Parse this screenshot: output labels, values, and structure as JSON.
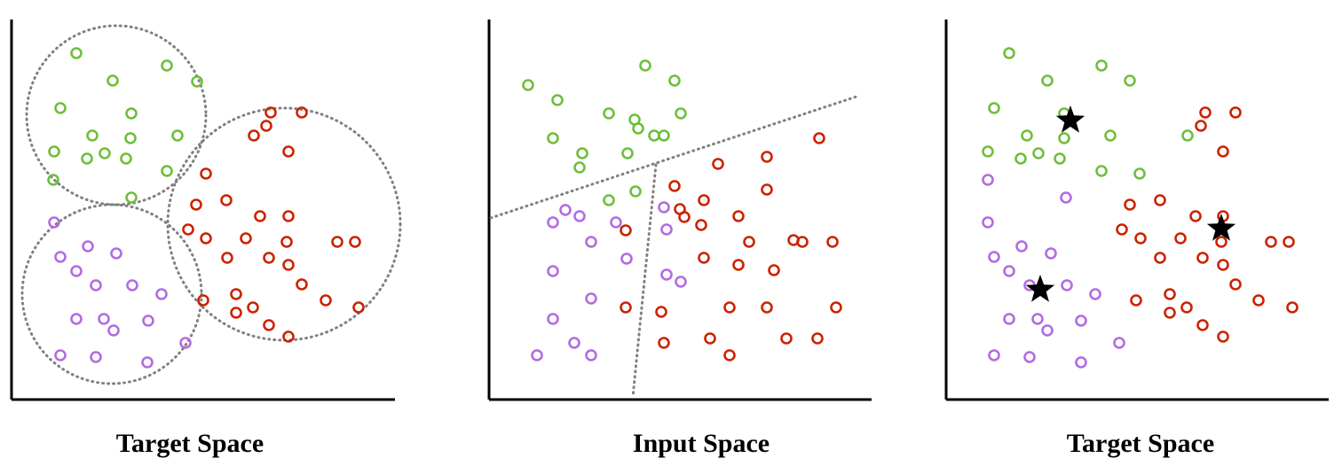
{
  "colors": {
    "green": "#6dbf3b",
    "red": "#cc2200",
    "purple": "#b36be0",
    "axis": "#000000",
    "dotted": "#808080",
    "star": "#000000"
  },
  "panels": [
    {
      "title": "Target Space",
      "boundary": "circles",
      "points": {
        "green": [
          [
            86,
            60
          ],
          [
            188,
            74
          ],
          [
            127,
            91
          ],
          [
            222,
            92
          ],
          [
            68,
            122
          ],
          [
            148,
            128
          ],
          [
            104,
            153
          ],
          [
            147,
            156
          ],
          [
            200,
            153
          ],
          [
            61,
            171
          ],
          [
            98,
            179
          ],
          [
            118,
            173
          ],
          [
            142,
            179
          ],
          [
            188,
            193
          ],
          [
            60,
            203
          ],
          [
            148,
            223
          ]
        ],
        "red": [
          [
            305,
            127
          ],
          [
            340,
            127
          ],
          [
            300,
            142
          ],
          [
            286,
            153
          ],
          [
            325,
            171
          ],
          [
            232,
            196
          ],
          [
            255,
            226
          ],
          [
            221,
            231
          ],
          [
            293,
            244
          ],
          [
            325,
            244
          ],
          [
            212,
            259
          ],
          [
            232,
            269
          ],
          [
            277,
            269
          ],
          [
            323,
            273
          ],
          [
            380,
            273
          ],
          [
            400,
            273
          ],
          [
            256,
            291
          ],
          [
            303,
            291
          ],
          [
            325,
            299
          ],
          [
            340,
            321
          ],
          [
            266,
            332
          ],
          [
            229,
            339
          ],
          [
            367,
            339
          ],
          [
            285,
            347
          ],
          [
            266,
            353
          ],
          [
            404,
            347
          ],
          [
            303,
            367
          ],
          [
            325,
            380
          ]
        ],
        "purple": [
          [
            61,
            251
          ],
          [
            99,
            278
          ],
          [
            131,
            286
          ],
          [
            68,
            290
          ],
          [
            86,
            306
          ],
          [
            108,
            322
          ],
          [
            149,
            322
          ],
          [
            182,
            332
          ],
          [
            86,
            360
          ],
          [
            117,
            360
          ],
          [
            167,
            362
          ],
          [
            128,
            373
          ],
          [
            209,
            387
          ],
          [
            68,
            401
          ],
          [
            108,
            403
          ],
          [
            166,
            409
          ]
        ]
      }
    },
    {
      "title": "Input Space",
      "boundary": "lines",
      "points": {
        "green": [
          [
            727,
            74
          ],
          [
            595,
            96
          ],
          [
            760,
            91
          ],
          [
            628,
            113
          ],
          [
            686,
            128
          ],
          [
            715,
            135
          ],
          [
            767,
            128
          ],
          [
            719,
            145
          ],
          [
            737,
            153
          ],
          [
            748,
            153
          ],
          [
            623,
            156
          ],
          [
            656,
            173
          ],
          [
            707,
            173
          ],
          [
            653,
            189
          ],
          [
            686,
            226
          ],
          [
            716,
            216
          ]
        ],
        "red": [
          [
            923,
            156
          ],
          [
            864,
            177
          ],
          [
            809,
            185
          ],
          [
            760,
            210
          ],
          [
            864,
            214
          ],
          [
            793,
            226
          ],
          [
            766,
            236
          ],
          [
            771,
            245
          ],
          [
            832,
            244
          ],
          [
            705,
            260
          ],
          [
            790,
            254
          ],
          [
            844,
            273
          ],
          [
            894,
            271
          ],
          [
            904,
            273
          ],
          [
            938,
            273
          ],
          [
            793,
            291
          ],
          [
            832,
            299
          ],
          [
            872,
            305
          ],
          [
            705,
            347
          ],
          [
            745,
            352
          ],
          [
            822,
            347
          ],
          [
            864,
            347
          ],
          [
            942,
            347
          ],
          [
            748,
            387
          ],
          [
            800,
            382
          ],
          [
            822,
            401
          ],
          [
            886,
            382
          ],
          [
            921,
            382
          ]
        ],
        "purple": [
          [
            637,
            237
          ],
          [
            653,
            244
          ],
          [
            623,
            251
          ],
          [
            748,
            234
          ],
          [
            694,
            251
          ],
          [
            751,
            259
          ],
          [
            666,
            273
          ],
          [
            706,
            292
          ],
          [
            623,
            306
          ],
          [
            751,
            310
          ],
          [
            767,
            318
          ],
          [
            666,
            337
          ],
          [
            623,
            360
          ],
          [
            647,
            387
          ],
          [
            666,
            401
          ],
          [
            605,
            401
          ]
        ]
      }
    },
    {
      "title": "Target Space",
      "boundary": "stars",
      "points": {
        "green": [
          [
            1137,
            60
          ],
          [
            1241,
            74
          ],
          [
            1180,
            91
          ],
          [
            1273,
            91
          ],
          [
            1120,
            122
          ],
          [
            1199,
            128
          ],
          [
            1157,
            153
          ],
          [
            1199,
            156
          ],
          [
            1251,
            153
          ],
          [
            1113,
            171
          ],
          [
            1150,
            179
          ],
          [
            1170,
            173
          ],
          [
            1194,
            179
          ],
          [
            1338,
            153
          ],
          [
            1241,
            193
          ],
          [
            1284,
            196
          ]
        ],
        "red": [
          [
            1358,
            127
          ],
          [
            1392,
            127
          ],
          [
            1353,
            142
          ],
          [
            1378,
            171
          ],
          [
            1307,
            226
          ],
          [
            1273,
            231
          ],
          [
            1347,
            244
          ],
          [
            1378,
            244
          ],
          [
            1264,
            259
          ],
          [
            1285,
            269
          ],
          [
            1330,
            269
          ],
          [
            1376,
            273
          ],
          [
            1432,
            273
          ],
          [
            1452,
            273
          ],
          [
            1307,
            291
          ],
          [
            1355,
            291
          ],
          [
            1378,
            299
          ],
          [
            1392,
            321
          ],
          [
            1318,
            332
          ],
          [
            1280,
            339
          ],
          [
            1418,
            339
          ],
          [
            1337,
            347
          ],
          [
            1318,
            353
          ],
          [
            1456,
            347
          ],
          [
            1355,
            367
          ],
          [
            1378,
            380
          ]
        ],
        "purple": [
          [
            1113,
            203
          ],
          [
            1201,
            223
          ],
          [
            1113,
            251
          ],
          [
            1151,
            278
          ],
          [
            1184,
            286
          ],
          [
            1120,
            290
          ],
          [
            1137,
            306
          ],
          [
            1160,
            322
          ],
          [
            1202,
            322
          ],
          [
            1234,
            332
          ],
          [
            1137,
            360
          ],
          [
            1169,
            360
          ],
          [
            1218,
            362
          ],
          [
            1180,
            373
          ],
          [
            1261,
            387
          ],
          [
            1120,
            401
          ],
          [
            1160,
            403
          ],
          [
            1218,
            409
          ]
        ]
      },
      "stars": [
        [
          1206,
          136
        ],
        [
          1376,
          258
        ],
        [
          1172,
          327
        ]
      ]
    }
  ]
}
